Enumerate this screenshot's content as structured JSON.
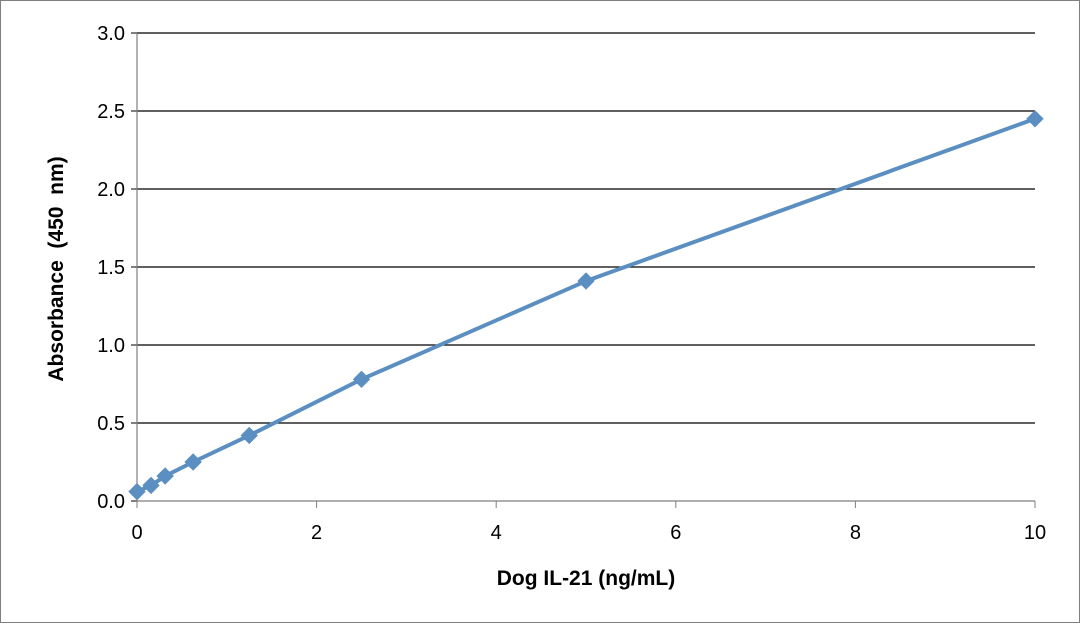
{
  "chart_data": {
    "type": "line",
    "title": "",
    "xlabel": "Dog IL-21 (ng/mL)",
    "ylabel": "Absorbance  (450  nm)",
    "xlim": [
      0,
      10
    ],
    "ylim": [
      0,
      3.0
    ],
    "x_ticks": [
      "0",
      "2",
      "4",
      "6",
      "8",
      "10"
    ],
    "y_ticks": [
      "0.0",
      "0.5",
      "1.0",
      "1.5",
      "2.0",
      "2.5",
      "3.0"
    ],
    "grid": "horizontal",
    "legend": "none",
    "series": [
      {
        "x": [
          0,
          0.156,
          0.313,
          0.625,
          1.25,
          2.5,
          5,
          10
        ],
        "y": [
          0.06,
          0.1,
          0.16,
          0.25,
          0.42,
          0.78,
          1.41,
          2.45
        ],
        "color": "#5b8fc1",
        "marker": "diamond"
      }
    ]
  }
}
